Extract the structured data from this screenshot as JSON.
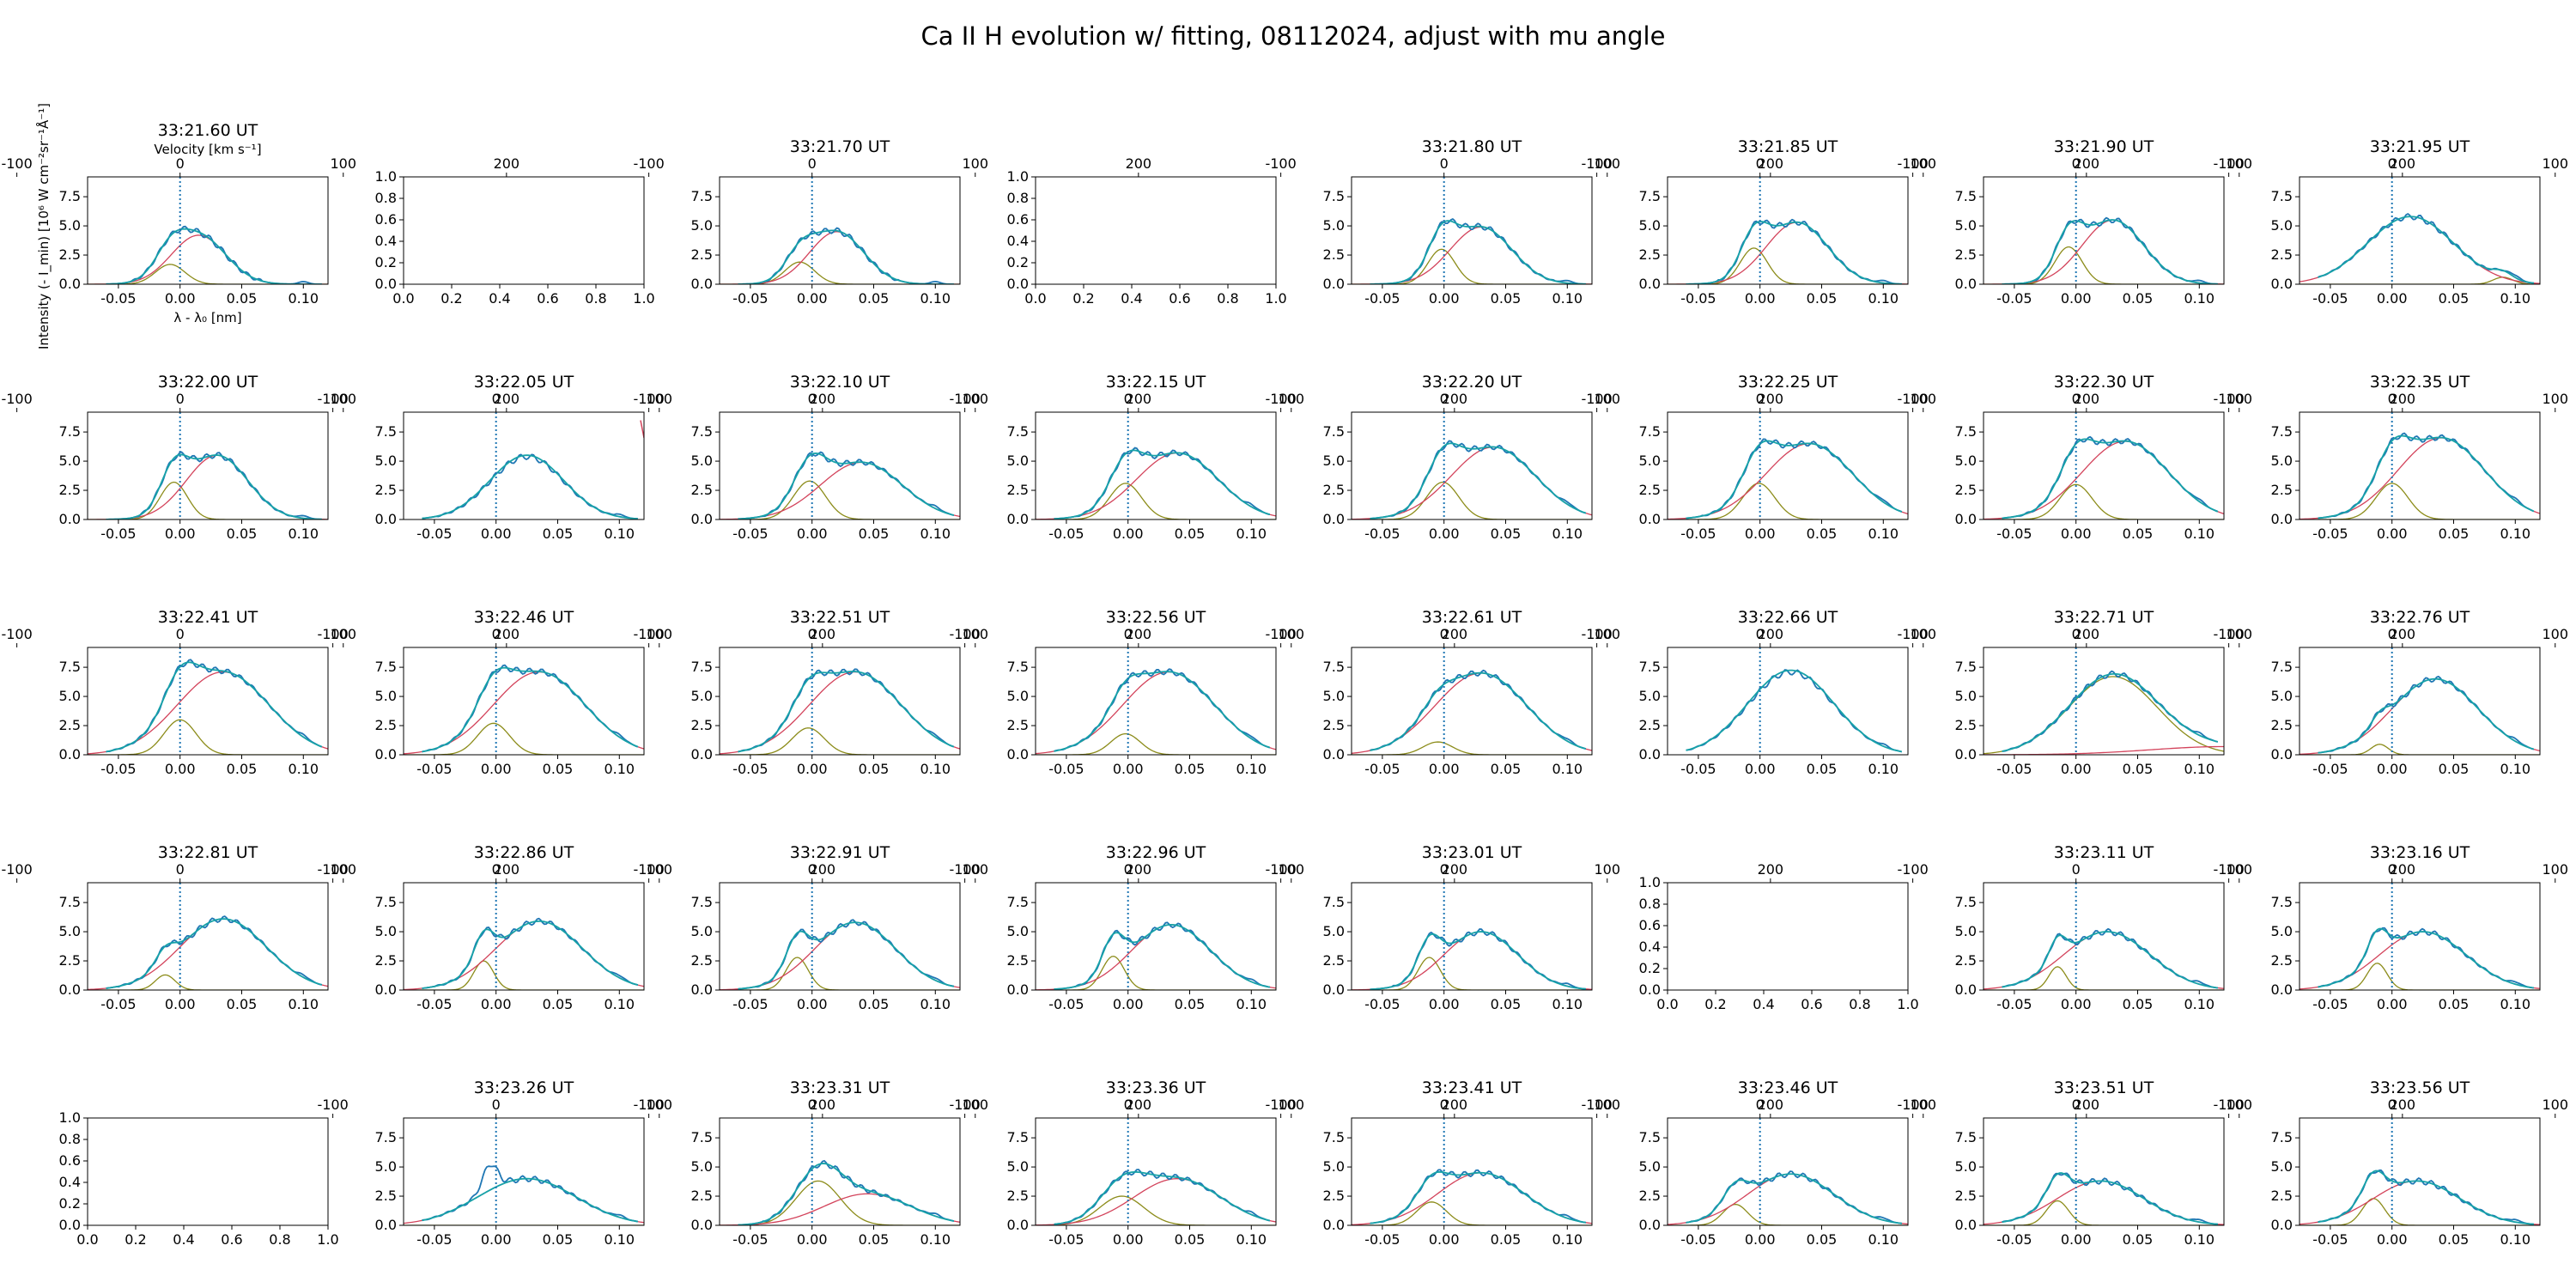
{
  "suptitle": "Ca II H evolution w/ fitting, 08112024, adjust with mu angle",
  "colors": {
    "obs": "#1f77b4",
    "fit": "#17a2a8",
    "red": "#d3435b",
    "olive": "#8c8c1a",
    "center": "#1f77b4"
  },
  "labels": {
    "velocity": "Velocity [km s⁻¹]",
    "wavelength": "λ - λ₀ [nm]",
    "intensity": "Intensity (- I_min) [10⁶ W cm⁻²sr⁻¹Å⁻¹]"
  },
  "axes_common": {
    "xlim": [
      -0.075,
      0.12
    ],
    "ylim": [
      0,
      9.2
    ],
    "xticks": [
      -0.05,
      0.0,
      0.05,
      0.1
    ],
    "xtick_labels": [
      "-0.05",
      "0.00",
      "0.05",
      "0.10"
    ],
    "yticks": [
      0,
      2.5,
      5,
      7.5
    ],
    "ytick_labels": [
      "0.0",
      "2.5",
      "5.0",
      "7.5"
    ],
    "vticks": [
      -100,
      0,
      100,
      200
    ],
    "vtick_labels": [
      "-100",
      "0",
      "100",
      "200"
    ],
    "empty_ticks": [
      0,
      0.2,
      0.4,
      0.6,
      0.8,
      1.0
    ],
    "empty_tick_labels": [
      "0.0",
      "0.2",
      "0.4",
      "0.6",
      "0.8",
      "1.0"
    ]
  },
  "chart_data": {
    "type": "line",
    "title": "Ca II H evolution w/ fitting, 08112024, adjust with mu angle",
    "grid": "5x8",
    "xlabel": "λ - λ₀ [nm]",
    "ylabel": "Intensity (- I_min) [10⁶ W cm⁻²sr⁻¹Å⁻¹]",
    "panels": [
      {
        "title": "33:21.60 UT",
        "g1": [
          1.7,
          -0.008,
          0.012
        ],
        "g2": [
          4.2,
          0.015,
          0.022
        ]
      },
      {
        "empty": true
      },
      {
        "title": "33:21.70 UT",
        "g1": [
          1.9,
          -0.01,
          0.012
        ],
        "g2": [
          4.5,
          0.02,
          0.022
        ]
      },
      {
        "empty": true
      },
      {
        "title": "33:21.80 UT",
        "g1": [
          3.0,
          -0.002,
          0.011
        ],
        "g2": [
          4.9,
          0.03,
          0.025
        ]
      },
      {
        "title": "33:21.85 UT",
        "g1": [
          3.1,
          -0.005,
          0.011
        ],
        "g2": [
          5.3,
          0.03,
          0.025
        ]
      },
      {
        "title": "33:21.90 UT",
        "g1": [
          3.2,
          -0.006,
          0.011
        ],
        "g2": [
          5.5,
          0.03,
          0.025
        ]
      },
      {
        "title": "33:21.95 UT",
        "g1": [
          0.6,
          0.09,
          0.008
        ],
        "g2": [
          5.8,
          0.015,
          0.035
        ]
      },
      {
        "title": "33:22.00 UT",
        "g1": [
          3.2,
          -0.005,
          0.011
        ],
        "g2": [
          5.5,
          0.03,
          0.025
        ]
      },
      {
        "title": "33:22.05 UT",
        "g1": [
          0,
          0,
          0.01
        ],
        "g2": [
          5.4,
          0.025,
          0.03
        ],
        "nofit": true,
        "stray": true
      },
      {
        "title": "33:22.10 UT",
        "g1": [
          3.3,
          -0.002,
          0.013
        ],
        "g2": [
          4.9,
          0.04,
          0.033
        ]
      },
      {
        "title": "33:22.15 UT",
        "g1": [
          3.1,
          -0.002,
          0.013
        ],
        "g2": [
          5.7,
          0.04,
          0.033
        ]
      },
      {
        "title": "33:22.20 UT",
        "g1": [
          3.2,
          -0.001,
          0.013
        ],
        "g2": [
          6.2,
          0.04,
          0.034
        ]
      },
      {
        "title": "33:22.25 UT",
        "g1": [
          3.1,
          -0.001,
          0.013
        ],
        "g2": [
          6.5,
          0.04,
          0.035
        ]
      },
      {
        "title": "33:22.30 UT",
        "g1": [
          3.0,
          0.0,
          0.013
        ],
        "g2": [
          6.7,
          0.04,
          0.035
        ]
      },
      {
        "title": "33:22.35 UT",
        "g1": [
          3.1,
          0.0,
          0.013
        ],
        "g2": [
          7.0,
          0.04,
          0.035
        ]
      },
      {
        "title": "33:22.41 UT",
        "g1": [
          3.0,
          0.0,
          0.013
        ],
        "g2": [
          7.1,
          0.035,
          0.037
        ]
      },
      {
        "title": "33:22.46 UT",
        "g1": [
          2.7,
          -0.002,
          0.013
        ],
        "g2": [
          7.1,
          0.035,
          0.037
        ]
      },
      {
        "title": "33:22.51 UT",
        "g1": [
          2.3,
          -0.003,
          0.013
        ],
        "g2": [
          7.1,
          0.035,
          0.037
        ]
      },
      {
        "title": "33:22.56 UT",
        "g1": [
          1.8,
          -0.002,
          0.012
        ],
        "g2": [
          7.1,
          0.033,
          0.037
        ]
      },
      {
        "title": "33:22.61 UT",
        "g1": [
          1.1,
          -0.005,
          0.012
        ],
        "g2": [
          7.0,
          0.03,
          0.037
        ]
      },
      {
        "title": "33:22.66 UT",
        "g1": [
          0,
          0,
          0.01
        ],
        "g2": [
          7.1,
          0.025,
          0.035
        ],
        "nofit": true
      },
      {
        "title": "33:22.71 UT",
        "g1": [
          6.7,
          0.03,
          0.036
        ],
        "g2": [
          0.7,
          0.12,
          0.06
        ]
      },
      {
        "title": "33:22.76 UT",
        "g1": [
          0.9,
          -0.01,
          0.007
        ],
        "g2": [
          6.5,
          0.035,
          0.035
        ]
      },
      {
        "title": "33:22.81 UT",
        "g1": [
          1.3,
          -0.012,
          0.008
        ],
        "g2": [
          6.1,
          0.035,
          0.035
        ]
      },
      {
        "title": "33:22.86 UT",
        "g1": [
          2.5,
          -0.01,
          0.008
        ],
        "g2": [
          5.9,
          0.035,
          0.035
        ]
      },
      {
        "title": "33:22.91 UT",
        "g1": [
          2.8,
          -0.012,
          0.009
        ],
        "g2": [
          5.8,
          0.035,
          0.033
        ]
      },
      {
        "title": "33:22.96 UT",
        "g1": [
          2.9,
          -0.012,
          0.009
        ],
        "g2": [
          5.6,
          0.035,
          0.032
        ]
      },
      {
        "title": "33:23.01 UT",
        "g1": [
          2.8,
          -0.012,
          0.009
        ],
        "g2": [
          5.0,
          0.03,
          0.03
        ]
      },
      {
        "empty": true
      },
      {
        "title": "33:23.11 UT",
        "g1": [
          2.0,
          -0.015,
          0.007
        ],
        "g2": [
          5.0,
          0.025,
          0.035
        ]
      },
      {
        "title": "33:23.16 UT",
        "g1": [
          2.3,
          -0.012,
          0.008
        ],
        "g2": [
          5.0,
          0.025,
          0.035
        ]
      },
      {
        "empty": true
      },
      {
        "title": "33:23.26 UT",
        "g1": [
          0,
          0,
          0.01
        ],
        "g2": [
          4.0,
          0.025,
          0.04
        ],
        "bump": true
      },
      {
        "title": "33:23.31 UT",
        "g1": [
          3.8,
          0.005,
          0.018
        ],
        "g2": [
          2.7,
          0.045,
          0.035
        ]
      },
      {
        "title": "33:23.36 UT",
        "g1": [
          2.5,
          -0.005,
          0.018
        ],
        "g2": [
          4.0,
          0.04,
          0.035
        ]
      },
      {
        "title": "33:23.41 UT",
        "g1": [
          2.0,
          -0.01,
          0.012
        ],
        "g2": [
          4.5,
          0.03,
          0.035
        ]
      },
      {
        "title": "33:23.46 UT",
        "g1": [
          1.8,
          -0.02,
          0.01
        ],
        "g2": [
          4.4,
          0.025,
          0.035
        ]
      },
      {
        "title": "33:23.51 UT",
        "g1": [
          2.1,
          -0.015,
          0.009
        ],
        "g2": [
          3.8,
          0.02,
          0.035
        ]
      },
      {
        "title": "33:23.56 UT",
        "g1": [
          2.3,
          -0.015,
          0.009
        ],
        "g2": [
          3.8,
          0.02,
          0.035
        ]
      }
    ]
  }
}
